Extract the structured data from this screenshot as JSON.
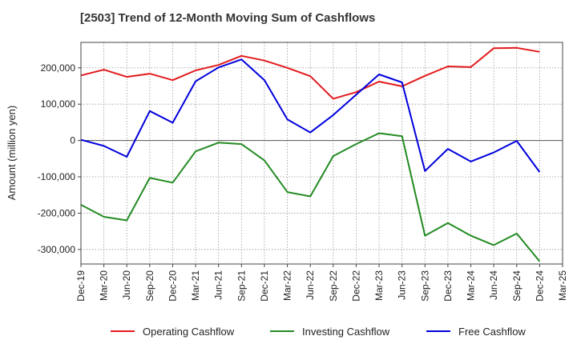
{
  "chart_data": {
    "type": "line",
    "title": "[2503]  Trend of 12-Month Moving Sum of Cashflows",
    "xlabel": "",
    "ylabel": "Amount (million yen)",
    "ylim": [
      -340000,
      270000
    ],
    "yticks": [
      200000,
      100000,
      0,
      -100000,
      -200000,
      -300000
    ],
    "ytick_labels": [
      "200,000",
      "100,000",
      "0",
      "-100,000",
      "-200,000",
      "-300,000"
    ],
    "categories": [
      "Dec-19",
      "Mar-20",
      "Jun-20",
      "Sep-20",
      "Dec-20",
      "Mar-21",
      "Jun-21",
      "Sep-21",
      "Dec-21",
      "Mar-22",
      "Jun-22",
      "Sep-22",
      "Dec-22",
      "Mar-23",
      "Jun-23",
      "Sep-23",
      "Dec-23",
      "Mar-24",
      "Jun-24",
      "Sep-24",
      "Dec-24",
      "Mar-25"
    ],
    "grid": true,
    "legend_position": "bottom",
    "series": [
      {
        "name": "Operating Cashflow",
        "color": "#e31a1c",
        "values": [
          179000,
          195000,
          175000,
          184000,
          166000,
          193000,
          208000,
          233000,
          220000,
          200000,
          177000,
          115000,
          133000,
          162000,
          149000,
          178000,
          204000,
          202000,
          254000,
          255000,
          244000,
          null
        ]
      },
      {
        "name": "Investing Cashflow",
        "color": "#238b22",
        "values": [
          -177000,
          -210000,
          -220000,
          -103000,
          -116000,
          -30000,
          -6000,
          -10000,
          -55000,
          -142000,
          -154000,
          -43000,
          -10000,
          20000,
          12000,
          -262000,
          -227000,
          -262000,
          -288000,
          -256000,
          -333000,
          null
        ]
      },
      {
        "name": "Free Cashflow",
        "color": "#0000dd",
        "values": [
          2000,
          -15000,
          -45000,
          81000,
          49000,
          163000,
          201000,
          223000,
          166000,
          58000,
          22000,
          70000,
          126000,
          182000,
          160000,
          -84000,
          -23000,
          -58000,
          -33000,
          -1000,
          -87000,
          null
        ]
      }
    ]
  }
}
